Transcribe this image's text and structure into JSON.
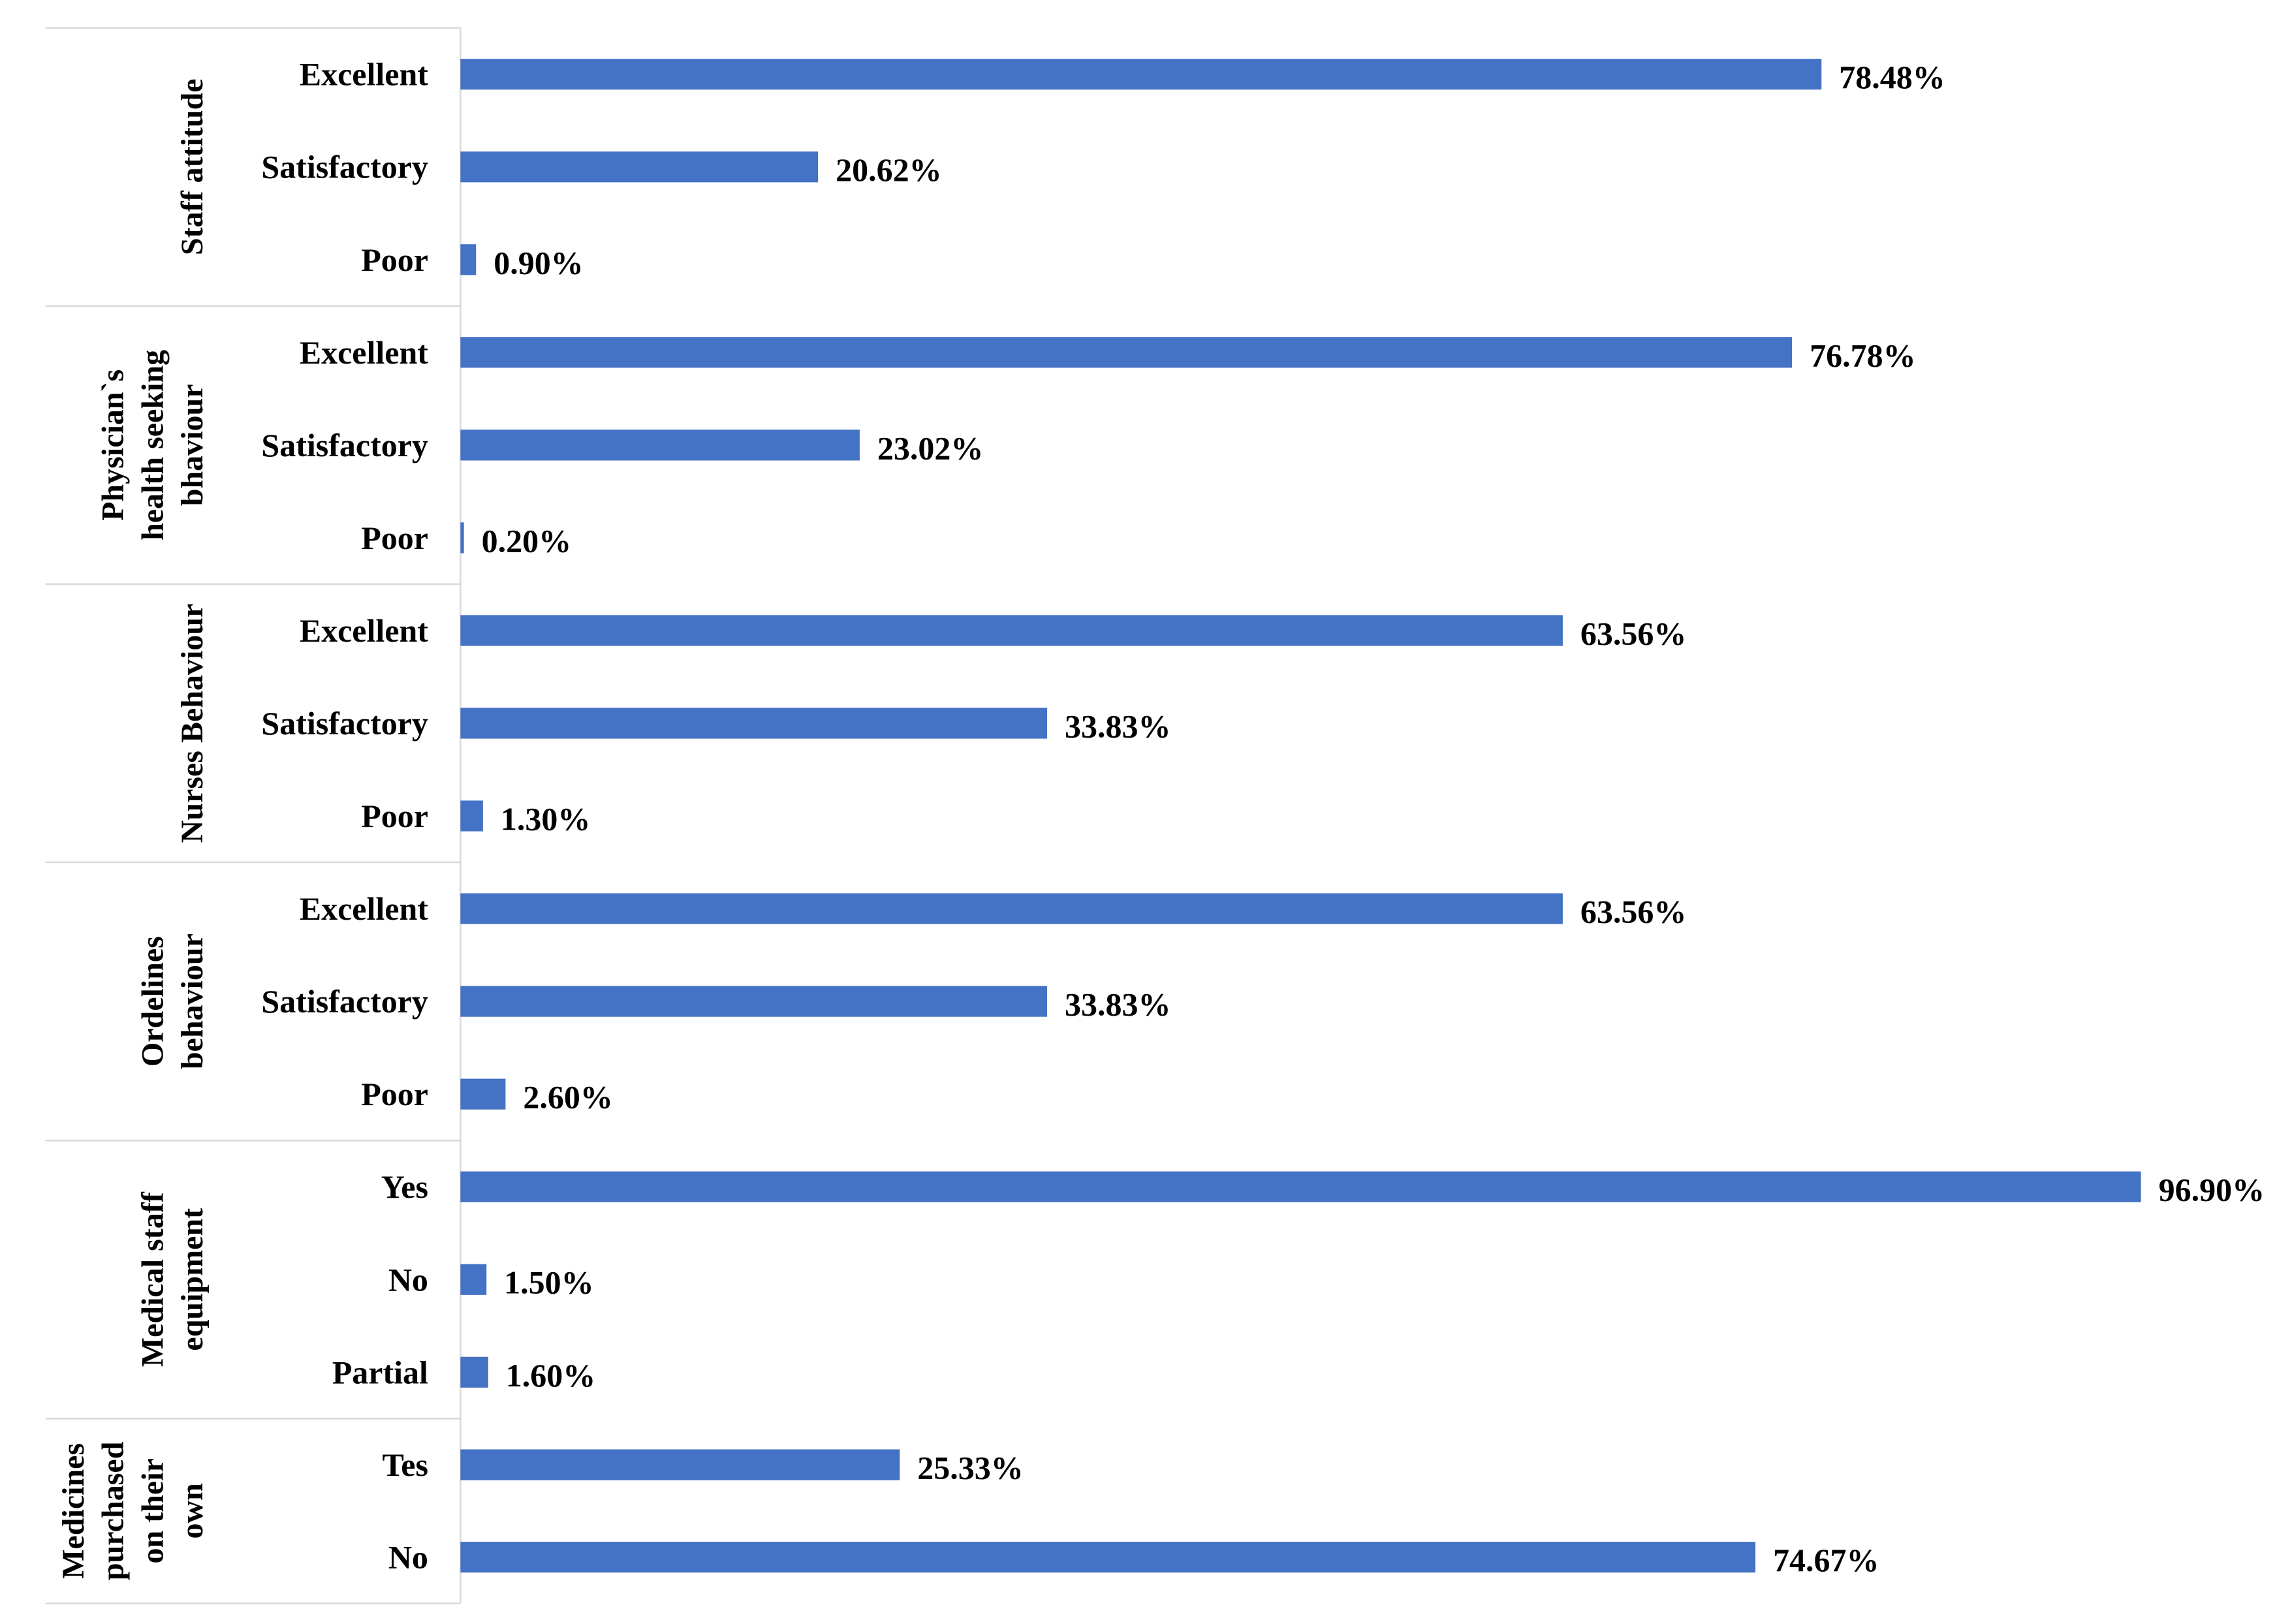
{
  "chart_data": {
    "type": "bar",
    "orientation": "horizontal",
    "bar_color": "#4472C4",
    "value_suffix": "%",
    "xlim": [
      0,
      100
    ],
    "grid": false,
    "groups": [
      {
        "name": "Staff attitude",
        "label_lines": [
          "Staff attitude"
        ],
        "categories": [
          "Excellent",
          "Satisfactory",
          "Poor"
        ],
        "values": [
          78.48,
          20.62,
          0.9
        ],
        "labels": [
          "78.48%",
          "20.62%",
          "0.90%"
        ]
      },
      {
        "name": "Physician`s health seeking bhaviour",
        "label_lines": [
          "Physician`s",
          "health seeking",
          "bhaviour"
        ],
        "categories": [
          "Excellent",
          "Satisfactory",
          "Poor"
        ],
        "values": [
          76.78,
          23.02,
          0.2
        ],
        "labels": [
          "76.78%",
          "23.02%",
          "0.20%"
        ]
      },
      {
        "name": "Nurses Behaviour",
        "label_lines": [
          "Nurses Behaviour"
        ],
        "categories": [
          "Excellent",
          "Satisfactory",
          "Poor"
        ],
        "values": [
          63.56,
          33.83,
          1.3
        ],
        "labels": [
          "63.56%",
          "33.83%",
          "1.30%"
        ]
      },
      {
        "name": "Ordelines behaviour",
        "label_lines": [
          "Ordelines",
          "behaviour"
        ],
        "categories": [
          "Excellent",
          "Satisfactory",
          "Poor"
        ],
        "values": [
          63.56,
          33.83,
          2.6
        ],
        "labels": [
          "63.56%",
          "33.83%",
          "2.60%"
        ]
      },
      {
        "name": "Medical staff equipment",
        "label_lines": [
          "Medical staff",
          "equipment"
        ],
        "categories": [
          "Yes",
          "No",
          "Partial"
        ],
        "values": [
          96.9,
          1.5,
          1.6
        ],
        "labels": [
          "96.90%",
          "1.50%",
          "1.60%"
        ]
      },
      {
        "name": "Medicines purchased on their own",
        "label_lines": [
          "Medicines",
          "purchased",
          "on their",
          "own"
        ],
        "categories": [
          "Tes",
          "No"
        ],
        "values": [
          25.33,
          74.67
        ],
        "labels": [
          "25.33%",
          "74.67%"
        ]
      }
    ]
  }
}
